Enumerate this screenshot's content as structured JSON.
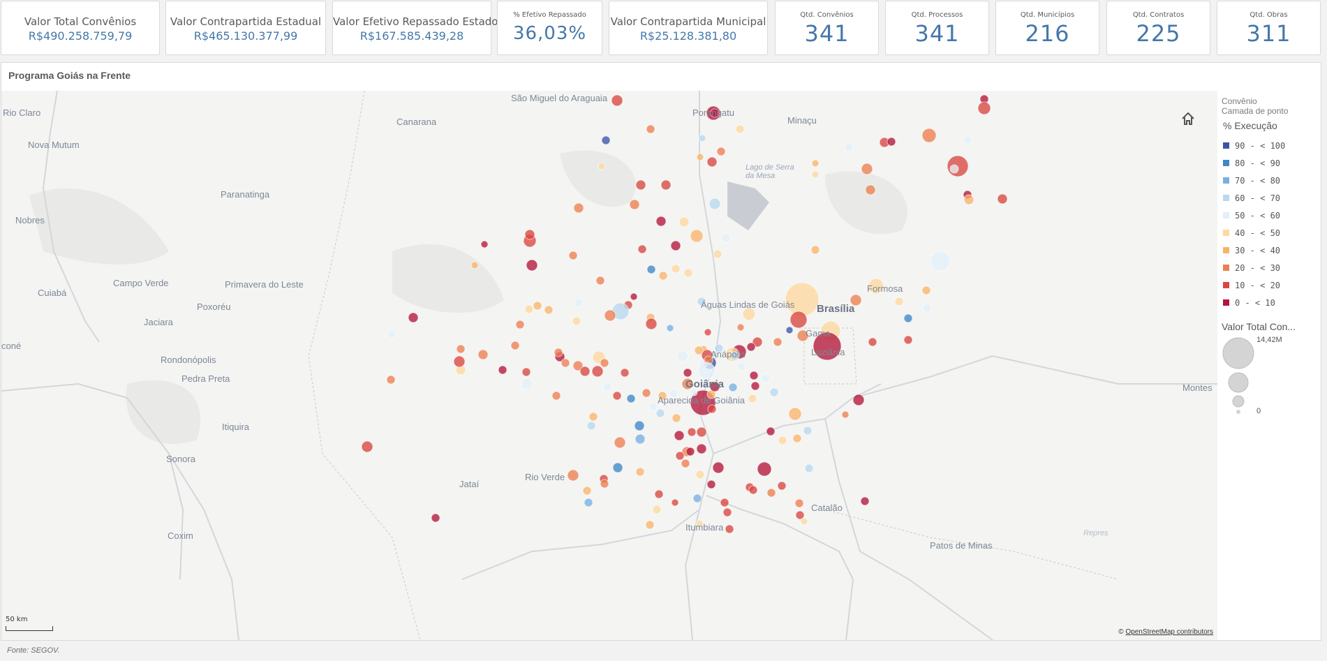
{
  "kpis": [
    {
      "title": "Valor Total Convênios",
      "value": "R$490.258.759,79"
    },
    {
      "title": "Valor Contrapartida Estadual",
      "value": "R$465.130.377,99"
    },
    {
      "title": "Valor Efetivo Repassado Estado",
      "value": "R$167.585.439,28"
    },
    {
      "title": "% Efetivo Repassado",
      "value": "36,03%"
    },
    {
      "title": "Valor Contrapartida Municipal",
      "value": "R$25.128.381,80"
    },
    {
      "title": "Qtd. Convênios",
      "value": "341"
    },
    {
      "title": "Qtd. Processos",
      "value": "341"
    },
    {
      "title": "Qtd. Municípios",
      "value": "216"
    },
    {
      "title": "Qtd. Contratos",
      "value": "225"
    },
    {
      "title": "Qtd. Obras",
      "value": "311"
    }
  ],
  "panel": {
    "title": "Programa Goiás na Frente"
  },
  "map": {
    "places": [
      "Rio Claro",
      "Nova Mutum",
      "Nobres",
      "Cuiabá",
      "Campo Verde",
      "Primavera do Leste",
      "Poxoréu",
      "Jaciara",
      "Rondonópolis",
      "Pedra Preta",
      "Itiquira",
      "Sonora",
      "Coxim",
      "Paranatinga",
      "Canarana",
      "São Miguel do Araguaia",
      "Porangatu",
      "Minaçu",
      "Lago de Serra da Mesa",
      "Formosa",
      "Águas Lindas de Goiás",
      "Brasília",
      "Gama",
      "Luziânia",
      "Anápolis",
      "Goiânia",
      "Aparecida de Goiânia",
      "Rio Verde",
      "Jataí",
      "Catalão",
      "Itumbiara",
      "Patos de Minas",
      "Montes",
      "Repres",
      "coné"
    ],
    "scale_label": "50 km",
    "attribution_prefix": "©",
    "attribution_link": "OpenStreetMap contributors",
    "home_icon": "home-icon"
  },
  "legend": {
    "layer": "Convênio",
    "layer_sub": "Camada de ponto",
    "color_title": "% Execução",
    "color_items": [
      {
        "label": "90 - < 100",
        "color": "#3a55a3"
      },
      {
        "label": "80 - < 90",
        "color": "#3f87c7"
      },
      {
        "label": "70 - < 80",
        "color": "#78b0e0"
      },
      {
        "label": "60 - < 70",
        "color": "#b7d8f0"
      },
      {
        "label": "50 - < 60",
        "color": "#e3eff9"
      },
      {
        "label": "40 - < 50",
        "color": "#fdd9a0"
      },
      {
        "label": "30 - < 40",
        "color": "#f8b36a"
      },
      {
        "label": "20 - < 30",
        "color": "#ec7f50"
      },
      {
        "label": "10 - < 20",
        "color": "#d9473f"
      },
      {
        "label": "0 - < 10",
        "color": "#b3163a"
      }
    ],
    "size_title": "Valor Total Con...",
    "size_max": "14,42M",
    "size_min": "0"
  },
  "footer": "Fonte: SEGOV."
}
